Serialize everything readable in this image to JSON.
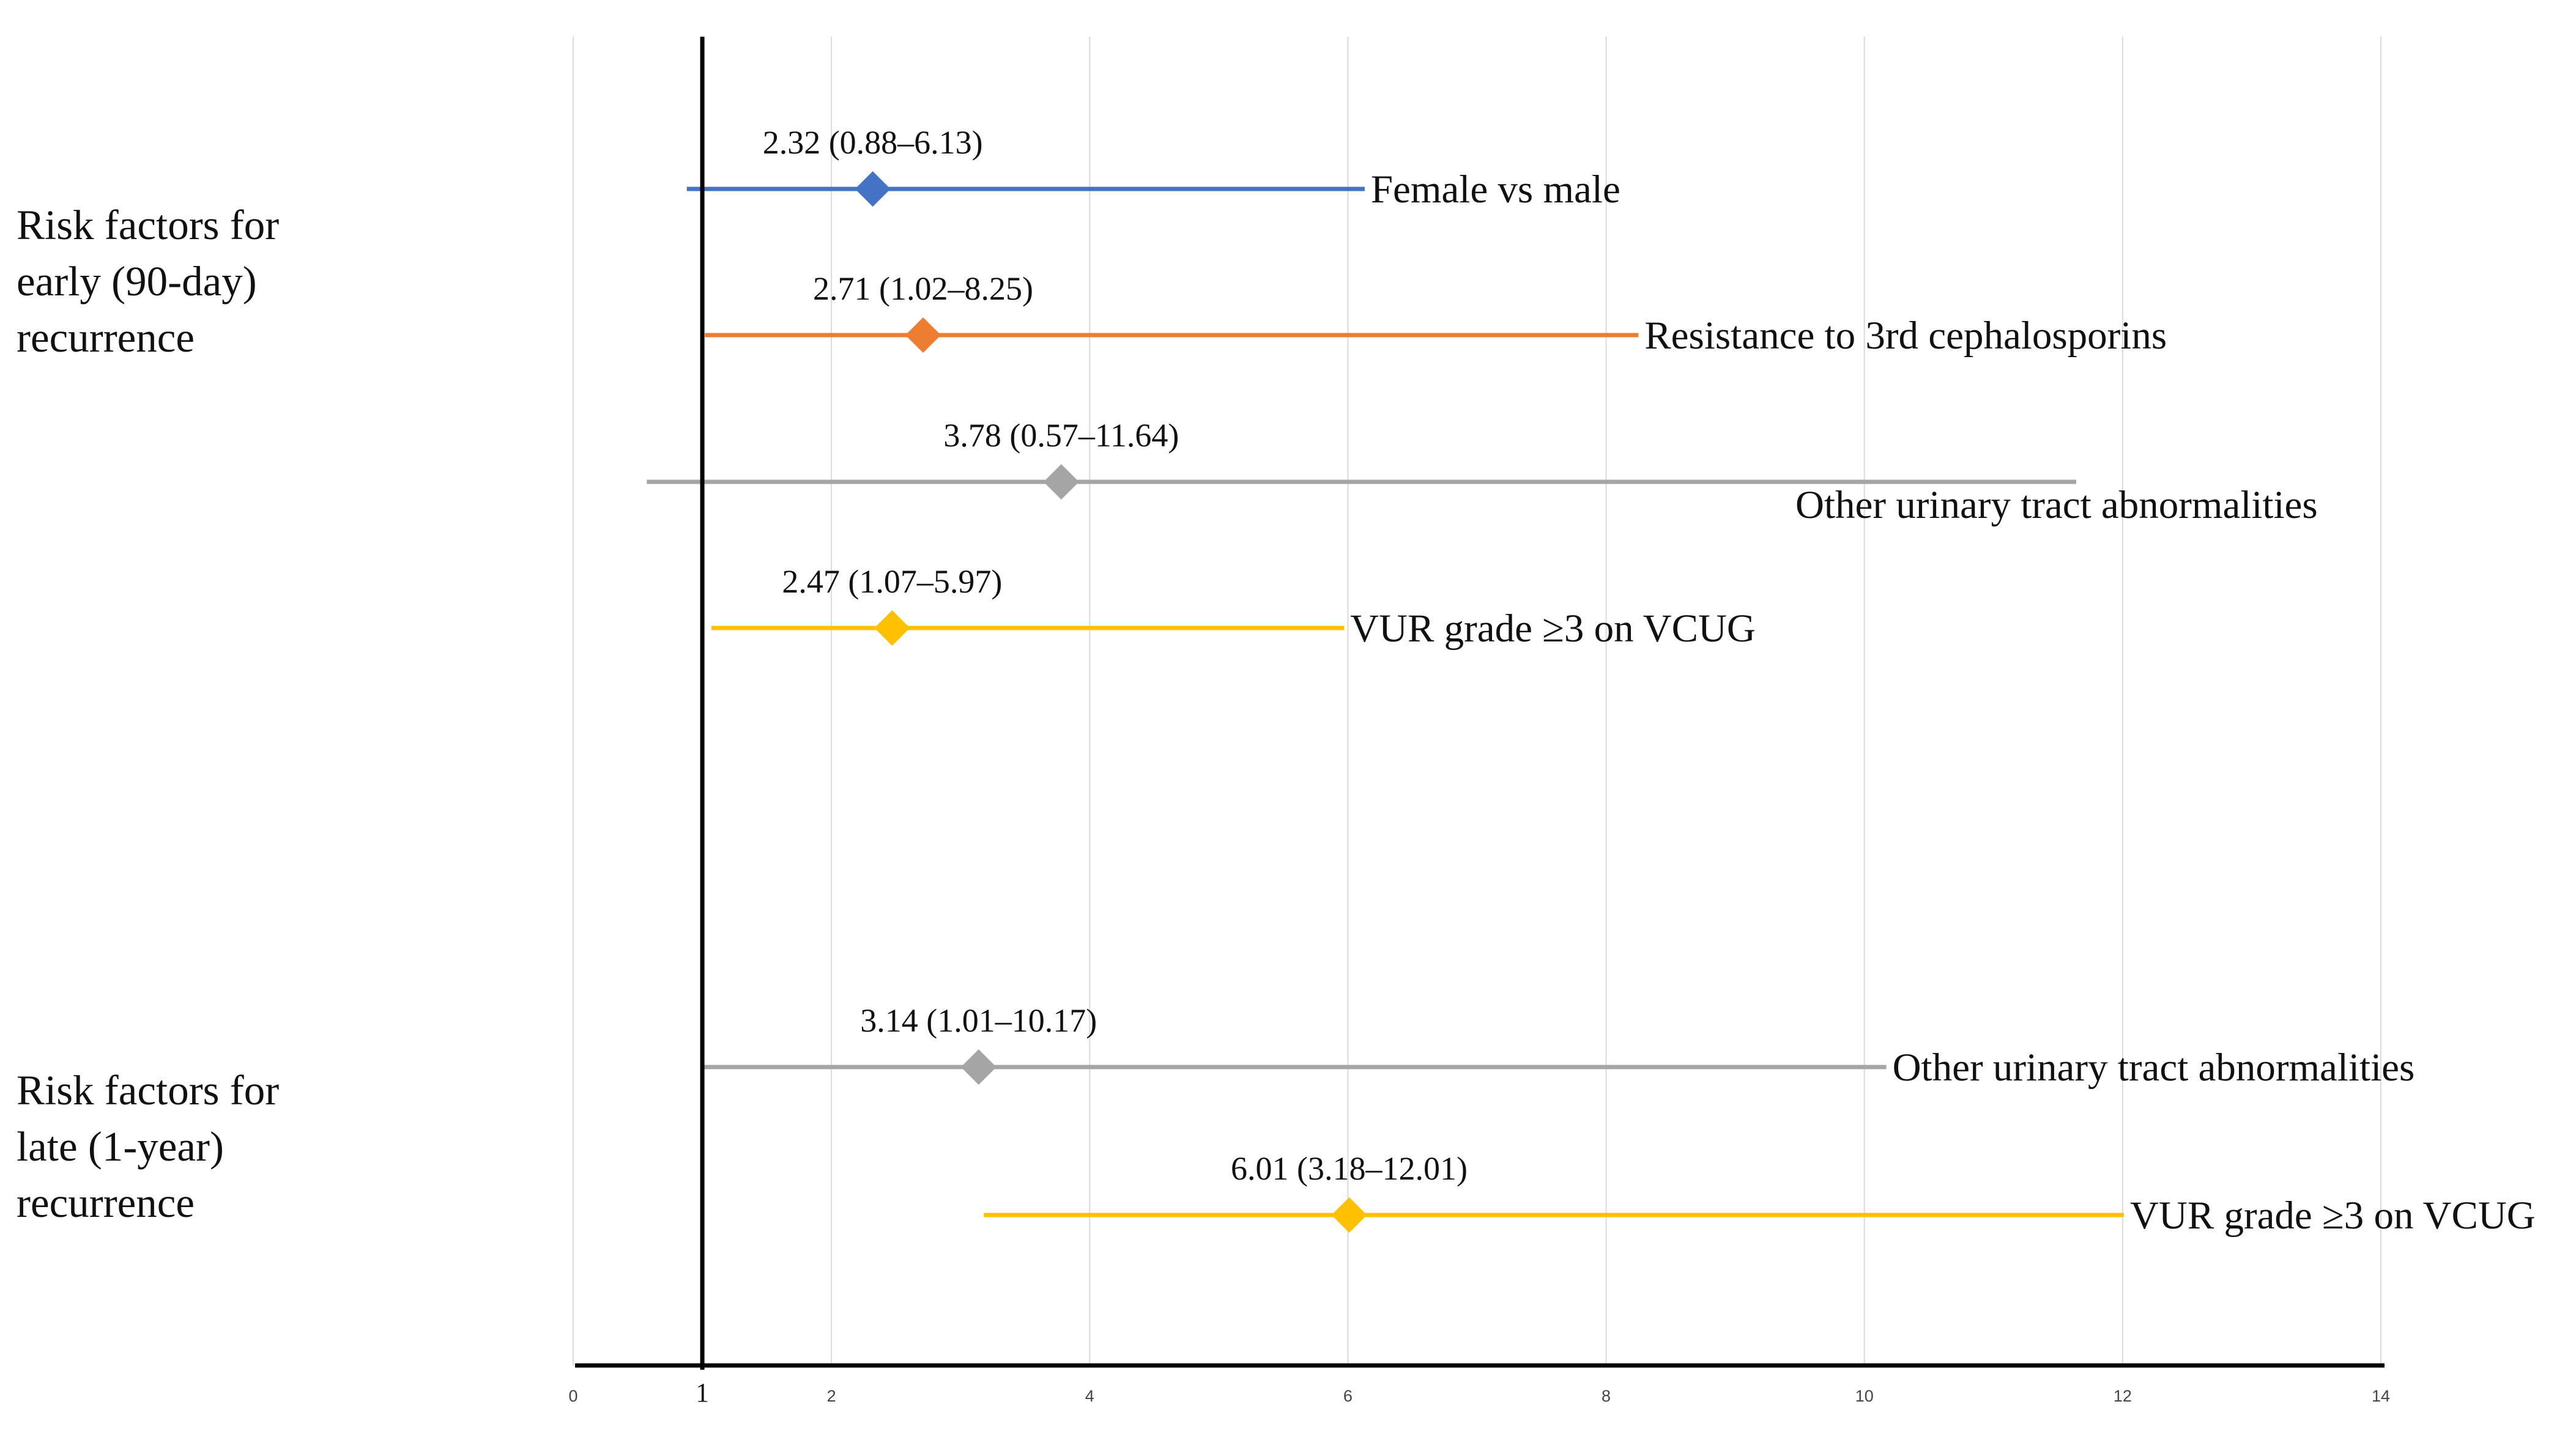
{
  "chart_data": {
    "type": "forest",
    "xlim": [
      0,
      14
    ],
    "x_ticks": [
      "0",
      "2",
      "4",
      "6",
      "8",
      "10",
      "12",
      "14"
    ],
    "reference_line": {
      "value": 1,
      "label": "1"
    },
    "gridlines": true,
    "groups": [
      {
        "label_lines": [
          "Risk factors for",
          "early (90-day)",
          "recurrence"
        ],
        "rows": [
          {
            "name": "Female vs male",
            "estimate": 2.32,
            "lower": 0.88,
            "upper": 6.13,
            "annotation": "2.32 (0.88–6.13)",
            "color": "#4472C4",
            "label_side": "right"
          },
          {
            "name": "Resistance to 3rd cephalosporins",
            "estimate": 2.71,
            "lower": 1.02,
            "upper": 8.25,
            "annotation": "2.71 (1.02–8.25)",
            "color": "#ED7D31",
            "label_side": "right"
          },
          {
            "name": "Other urinary tract abnormalities",
            "estimate": 3.78,
            "lower": 0.57,
            "upper": 11.64,
            "annotation": "3.78 (0.57–11.64)",
            "color": "#A5A5A5",
            "label_side": "below"
          },
          {
            "name": "VUR grade ≥3 on VCUG",
            "estimate": 2.47,
            "lower": 1.07,
            "upper": 5.97,
            "annotation": "2.47 (1.07–5.97)",
            "color": "#FFC000",
            "label_side": "right"
          }
        ]
      },
      {
        "label_lines": [
          "Risk factors for",
          "late (1-year)",
          "recurrence"
        ],
        "rows": [
          {
            "name": "Other urinary tract abnormalities",
            "estimate": 3.14,
            "lower": 1.01,
            "upper": 10.17,
            "annotation": "3.14 (1.01–10.17)",
            "color": "#A5A5A5",
            "label_side": "right"
          },
          {
            "name": "VUR grade ≥3 on VCUG",
            "estimate": 6.01,
            "lower": 3.18,
            "upper": 12.01,
            "annotation": "6.01 (3.18–12.01)",
            "color": "#FFC000",
            "label_side": "right"
          }
        ]
      }
    ]
  }
}
